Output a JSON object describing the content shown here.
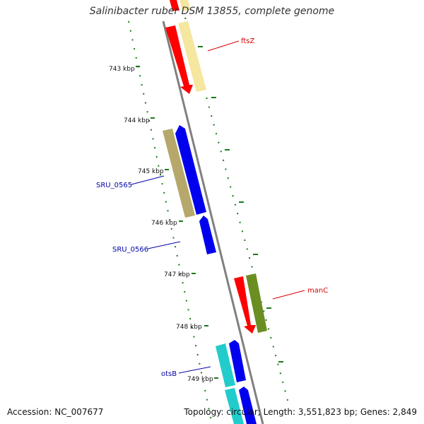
{
  "title": "Salinibacter ruber DSM 13855, complete genome",
  "footer": {
    "accession": "Accession: NC_007677",
    "topology": "Topology: circular; Length: 3,551,823 bp; Genes: 2,849"
  },
  "colors": {
    "backbone": "#808080",
    "tick": "#1a7a1a",
    "red_gene": "#ff0000",
    "yellow_gene": "#f5e6a0",
    "blue_gene": "#0000ee",
    "olive_gene": "#b5a86a",
    "green_gene": "#6b8e23",
    "cyan_gene": "#22cccc",
    "label_red": "#dd0000",
    "label_blue": "#0000aa"
  },
  "tick_labels": [
    "743 kbp",
    "744 kbp",
    "745 kbp",
    "746 kbp",
    "747 kbp",
    "748 kbp",
    "749 kbp"
  ],
  "gene_labels": [
    "ftsZ",
    "SRU_0565",
    "SRU_0566",
    "manC",
    "otsB"
  ]
}
